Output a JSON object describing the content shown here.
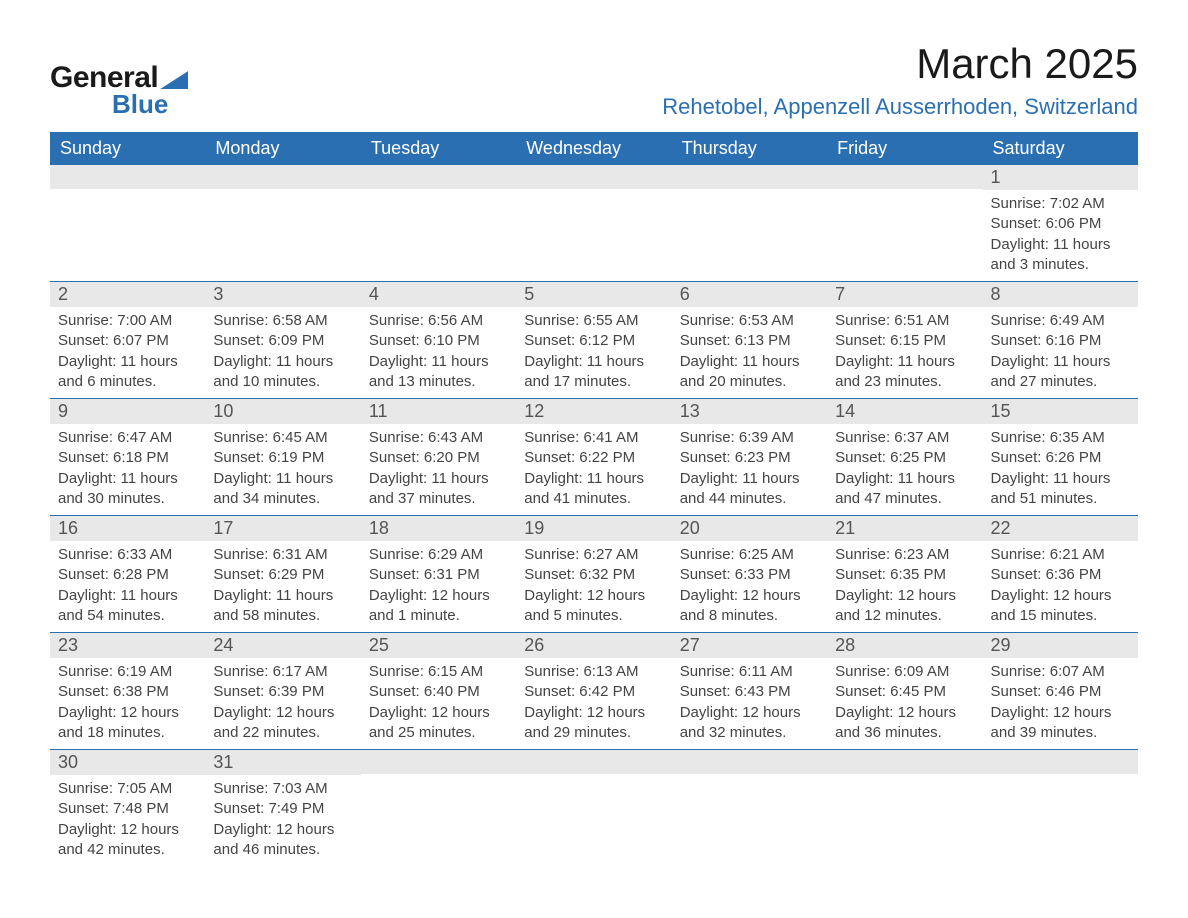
{
  "logo": {
    "line1": "General",
    "line2": "Blue"
  },
  "title": "March 2025",
  "location": "Rehetobel, Appenzell Ausserrhoden, Switzerland",
  "colors": {
    "brand_blue": "#2b6fb3",
    "header_text": "#ffffff",
    "daynum_bg": "#e8e8e8",
    "daynum_text": "#555555",
    "body_text": "#444444",
    "row_border": "#2b6fb3",
    "page_bg": "#ffffff"
  },
  "typography": {
    "month_title_pt": 42,
    "location_pt": 22,
    "day_header_pt": 18,
    "daynum_pt": 18,
    "body_pt": 15
  },
  "day_headers": [
    "Sunday",
    "Monday",
    "Tuesday",
    "Wednesday",
    "Thursday",
    "Friday",
    "Saturday"
  ],
  "weeks": [
    [
      {
        "empty": true
      },
      {
        "empty": true
      },
      {
        "empty": true
      },
      {
        "empty": true
      },
      {
        "empty": true
      },
      {
        "empty": true
      },
      {
        "num": "1",
        "sunrise": "Sunrise: 7:02 AM",
        "sunset": "Sunset: 6:06 PM",
        "day1": "Daylight: 11 hours",
        "day2": "and 3 minutes."
      }
    ],
    [
      {
        "num": "2",
        "sunrise": "Sunrise: 7:00 AM",
        "sunset": "Sunset: 6:07 PM",
        "day1": "Daylight: 11 hours",
        "day2": "and 6 minutes."
      },
      {
        "num": "3",
        "sunrise": "Sunrise: 6:58 AM",
        "sunset": "Sunset: 6:09 PM",
        "day1": "Daylight: 11 hours",
        "day2": "and 10 minutes."
      },
      {
        "num": "4",
        "sunrise": "Sunrise: 6:56 AM",
        "sunset": "Sunset: 6:10 PM",
        "day1": "Daylight: 11 hours",
        "day2": "and 13 minutes."
      },
      {
        "num": "5",
        "sunrise": "Sunrise: 6:55 AM",
        "sunset": "Sunset: 6:12 PM",
        "day1": "Daylight: 11 hours",
        "day2": "and 17 minutes."
      },
      {
        "num": "6",
        "sunrise": "Sunrise: 6:53 AM",
        "sunset": "Sunset: 6:13 PM",
        "day1": "Daylight: 11 hours",
        "day2": "and 20 minutes."
      },
      {
        "num": "7",
        "sunrise": "Sunrise: 6:51 AM",
        "sunset": "Sunset: 6:15 PM",
        "day1": "Daylight: 11 hours",
        "day2": "and 23 minutes."
      },
      {
        "num": "8",
        "sunrise": "Sunrise: 6:49 AM",
        "sunset": "Sunset: 6:16 PM",
        "day1": "Daylight: 11 hours",
        "day2": "and 27 minutes."
      }
    ],
    [
      {
        "num": "9",
        "sunrise": "Sunrise: 6:47 AM",
        "sunset": "Sunset: 6:18 PM",
        "day1": "Daylight: 11 hours",
        "day2": "and 30 minutes."
      },
      {
        "num": "10",
        "sunrise": "Sunrise: 6:45 AM",
        "sunset": "Sunset: 6:19 PM",
        "day1": "Daylight: 11 hours",
        "day2": "and 34 minutes."
      },
      {
        "num": "11",
        "sunrise": "Sunrise: 6:43 AM",
        "sunset": "Sunset: 6:20 PM",
        "day1": "Daylight: 11 hours",
        "day2": "and 37 minutes."
      },
      {
        "num": "12",
        "sunrise": "Sunrise: 6:41 AM",
        "sunset": "Sunset: 6:22 PM",
        "day1": "Daylight: 11 hours",
        "day2": "and 41 minutes."
      },
      {
        "num": "13",
        "sunrise": "Sunrise: 6:39 AM",
        "sunset": "Sunset: 6:23 PM",
        "day1": "Daylight: 11 hours",
        "day2": "and 44 minutes."
      },
      {
        "num": "14",
        "sunrise": "Sunrise: 6:37 AM",
        "sunset": "Sunset: 6:25 PM",
        "day1": "Daylight: 11 hours",
        "day2": "and 47 minutes."
      },
      {
        "num": "15",
        "sunrise": "Sunrise: 6:35 AM",
        "sunset": "Sunset: 6:26 PM",
        "day1": "Daylight: 11 hours",
        "day2": "and 51 minutes."
      }
    ],
    [
      {
        "num": "16",
        "sunrise": "Sunrise: 6:33 AM",
        "sunset": "Sunset: 6:28 PM",
        "day1": "Daylight: 11 hours",
        "day2": "and 54 minutes."
      },
      {
        "num": "17",
        "sunrise": "Sunrise: 6:31 AM",
        "sunset": "Sunset: 6:29 PM",
        "day1": "Daylight: 11 hours",
        "day2": "and 58 minutes."
      },
      {
        "num": "18",
        "sunrise": "Sunrise: 6:29 AM",
        "sunset": "Sunset: 6:31 PM",
        "day1": "Daylight: 12 hours",
        "day2": "and 1 minute."
      },
      {
        "num": "19",
        "sunrise": "Sunrise: 6:27 AM",
        "sunset": "Sunset: 6:32 PM",
        "day1": "Daylight: 12 hours",
        "day2": "and 5 minutes."
      },
      {
        "num": "20",
        "sunrise": "Sunrise: 6:25 AM",
        "sunset": "Sunset: 6:33 PM",
        "day1": "Daylight: 12 hours",
        "day2": "and 8 minutes."
      },
      {
        "num": "21",
        "sunrise": "Sunrise: 6:23 AM",
        "sunset": "Sunset: 6:35 PM",
        "day1": "Daylight: 12 hours",
        "day2": "and 12 minutes."
      },
      {
        "num": "22",
        "sunrise": "Sunrise: 6:21 AM",
        "sunset": "Sunset: 6:36 PM",
        "day1": "Daylight: 12 hours",
        "day2": "and 15 minutes."
      }
    ],
    [
      {
        "num": "23",
        "sunrise": "Sunrise: 6:19 AM",
        "sunset": "Sunset: 6:38 PM",
        "day1": "Daylight: 12 hours",
        "day2": "and 18 minutes."
      },
      {
        "num": "24",
        "sunrise": "Sunrise: 6:17 AM",
        "sunset": "Sunset: 6:39 PM",
        "day1": "Daylight: 12 hours",
        "day2": "and 22 minutes."
      },
      {
        "num": "25",
        "sunrise": "Sunrise: 6:15 AM",
        "sunset": "Sunset: 6:40 PM",
        "day1": "Daylight: 12 hours",
        "day2": "and 25 minutes."
      },
      {
        "num": "26",
        "sunrise": "Sunrise: 6:13 AM",
        "sunset": "Sunset: 6:42 PM",
        "day1": "Daylight: 12 hours",
        "day2": "and 29 minutes."
      },
      {
        "num": "27",
        "sunrise": "Sunrise: 6:11 AM",
        "sunset": "Sunset: 6:43 PM",
        "day1": "Daylight: 12 hours",
        "day2": "and 32 minutes."
      },
      {
        "num": "28",
        "sunrise": "Sunrise: 6:09 AM",
        "sunset": "Sunset: 6:45 PM",
        "day1": "Daylight: 12 hours",
        "day2": "and 36 minutes."
      },
      {
        "num": "29",
        "sunrise": "Sunrise: 6:07 AM",
        "sunset": "Sunset: 6:46 PM",
        "day1": "Daylight: 12 hours",
        "day2": "and 39 minutes."
      }
    ],
    [
      {
        "num": "30",
        "sunrise": "Sunrise: 7:05 AM",
        "sunset": "Sunset: 7:48 PM",
        "day1": "Daylight: 12 hours",
        "day2": "and 42 minutes."
      },
      {
        "num": "31",
        "sunrise": "Sunrise: 7:03 AM",
        "sunset": "Sunset: 7:49 PM",
        "day1": "Daylight: 12 hours",
        "day2": "and 46 minutes."
      },
      {
        "empty": true
      },
      {
        "empty": true
      },
      {
        "empty": true
      },
      {
        "empty": true
      },
      {
        "empty": true
      }
    ]
  ]
}
